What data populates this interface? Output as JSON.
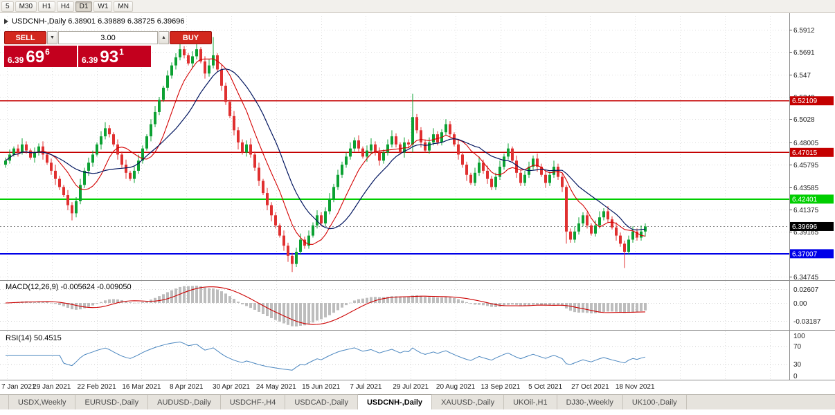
{
  "toolbar": {
    "timeframes": [
      {
        "label": "5",
        "active": false
      },
      {
        "label": "M30",
        "active": false
      },
      {
        "label": "H1",
        "active": false
      },
      {
        "label": "H4",
        "active": false
      },
      {
        "label": "D1",
        "active": true
      },
      {
        "label": "W1",
        "active": false
      },
      {
        "label": "MN",
        "active": false
      }
    ]
  },
  "trade_panel": {
    "sell_label": "SELL",
    "buy_label": "BUY",
    "volume": "3.00",
    "button_color": "#d3281e",
    "box_color": "#c3001e",
    "sell_price": {
      "prefix": "6.39",
      "big": "69",
      "sup": "6"
    },
    "buy_price": {
      "prefix": "6.39",
      "big": "93",
      "sup": "1"
    }
  },
  "chart_data": {
    "type": "candlestick",
    "symbol": "USDCNH-",
    "timeframe": "Daily",
    "header_text": "USDCNH-,Daily 6.38901 6.39889 6.38725 6.39696",
    "ohlc": {
      "open": "6.38901",
      "high": "6.39889",
      "low": "6.38725",
      "close": "6.39696"
    },
    "up_color": "#0ca133",
    "down_color": "#e03030",
    "ylim": [
      6.3447,
      6.6008
    ],
    "y_axis_labels": [
      "6.5912",
      "6.5691",
      "6.547",
      "6.5249",
      "6.5028",
      "6.48005",
      "6.45795",
      "6.43585",
      "6.41375",
      "6.39165",
      "6.34745"
    ],
    "y_axis_values": [
      6.5912,
      6.5691,
      6.547,
      6.5249,
      6.5028,
      6.48005,
      6.45795,
      6.43585,
      6.41375,
      6.39165,
      6.34745
    ],
    "x_labels": [
      "7 Jan 2021",
      "29 Jan 2021",
      "22 Feb 2021",
      "16 Mar 2021",
      "8 Apr 2021",
      "30 Apr 2021",
      "24 May 2021",
      "15 Jun 2021",
      "7 Jul 2021",
      "29 Jul 2021",
      "20 Aug 2021",
      "13 Sep 2021",
      "5 Oct 2021",
      "27 Oct 2021",
      "18 Nov 2021"
    ],
    "hlines": [
      {
        "value": 6.52109,
        "label": "6.52109",
        "color": "#c40000",
        "width": 1.2
      },
      {
        "value": 6.47015,
        "label": "6.47015",
        "color": "#c40000",
        "width": 1.4
      },
      {
        "value": 6.42401,
        "label": "6.42401",
        "color": "#00ce00",
        "width": 2
      },
      {
        "value": 6.37007,
        "label": "6.37007",
        "color": "#0000e8",
        "width": 2
      }
    ],
    "current_price": {
      "value": 6.39696,
      "label": "6.39696",
      "color": "#000000"
    },
    "ma_fast": {
      "period": 9,
      "color": "#d40000"
    },
    "ma_slow": {
      "period": 17,
      "color": "#00145e"
    },
    "macd": {
      "title": "MACD(12,26,9)",
      "values_text": "-0.005624 -0.009050",
      "fast": 12,
      "slow": 26,
      "signal": 9,
      "axis_labels": [
        "0.02607",
        "0.00",
        "-0.03187"
      ],
      "hist_color": "#bdbdbd",
      "signal_color": "#cc0000"
    },
    "rsi": {
      "title": "RSI(14)",
      "value_text": "50.4515",
      "period": 14,
      "levels": [
        70,
        30
      ],
      "axis_labels": [
        "100",
        "70",
        "30",
        "0"
      ],
      "color": "#4a86bf"
    },
    "candles": [
      [
        6.458,
        6.465,
        6.455,
        6.462
      ],
      [
        6.462,
        6.473,
        6.459,
        6.468
      ],
      [
        6.468,
        6.476,
        6.466,
        6.474
      ],
      [
        6.474,
        6.478,
        6.466,
        6.47
      ],
      [
        6.47,
        6.484,
        6.468,
        6.478
      ],
      [
        6.478,
        6.481,
        6.469,
        6.472
      ],
      [
        6.472,
        6.474,
        6.463,
        6.465
      ],
      [
        6.465,
        6.475,
        6.46,
        6.47
      ],
      [
        6.47,
        6.479,
        6.467,
        6.476
      ],
      [
        6.476,
        6.481,
        6.463,
        6.468
      ],
      [
        6.468,
        6.47,
        6.458,
        6.46
      ],
      [
        6.46,
        6.464,
        6.448,
        6.452
      ],
      [
        6.452,
        6.458,
        6.438,
        6.444
      ],
      [
        6.444,
        6.447,
        6.433,
        6.436
      ],
      [
        6.436,
        6.438,
        6.426,
        6.428
      ],
      [
        6.428,
        6.433,
        6.413,
        6.418
      ],
      [
        6.418,
        6.421,
        6.403,
        6.41
      ],
      [
        6.41,
        6.426,
        6.406,
        6.422
      ],
      [
        6.422,
        6.444,
        6.419,
        6.438
      ],
      [
        6.438,
        6.455,
        6.435,
        6.452
      ],
      [
        6.452,
        6.465,
        6.447,
        6.46
      ],
      [
        6.46,
        6.472,
        6.456,
        6.468
      ],
      [
        6.468,
        6.48,
        6.466,
        6.478
      ],
      [
        6.478,
        6.491,
        6.473,
        6.486
      ],
      [
        6.486,
        6.5,
        6.483,
        6.494
      ],
      [
        6.494,
        6.497,
        6.485,
        6.488
      ],
      [
        6.488,
        6.49,
        6.476,
        6.478
      ],
      [
        6.478,
        6.483,
        6.463,
        6.468
      ],
      [
        6.468,
        6.471,
        6.455,
        6.458
      ],
      [
        6.458,
        6.463,
        6.444,
        6.45
      ],
      [
        6.45,
        6.452,
        6.442,
        6.444
      ],
      [
        6.444,
        6.456,
        6.44,
        6.452
      ],
      [
        6.452,
        6.468,
        6.449,
        6.462
      ],
      [
        6.462,
        6.477,
        6.459,
        6.474
      ],
      [
        6.474,
        6.488,
        6.472,
        6.486
      ],
      [
        6.486,
        6.503,
        6.481,
        6.498
      ],
      [
        6.498,
        6.516,
        6.495,
        6.51
      ],
      [
        6.51,
        6.525,
        6.507,
        6.522
      ],
      [
        6.522,
        6.536,
        6.52,
        6.534
      ],
      [
        6.534,
        6.551,
        6.531,
        6.546
      ],
      [
        6.546,
        6.559,
        6.543,
        6.556
      ],
      [
        6.556,
        6.568,
        6.552,
        6.564
      ],
      [
        6.564,
        6.58,
        6.561,
        6.572
      ],
      [
        6.572,
        6.575,
        6.563,
        6.566
      ],
      [
        6.566,
        6.568,
        6.556,
        6.558
      ],
      [
        6.558,
        6.57,
        6.553,
        6.565
      ],
      [
        6.565,
        6.578,
        6.562,
        6.572
      ],
      [
        6.572,
        6.574,
        6.558,
        6.56
      ],
      [
        6.56,
        6.565,
        6.543,
        6.548
      ],
      [
        6.548,
        6.562,
        6.545,
        6.556
      ],
      [
        6.556,
        6.584,
        6.553,
        6.566
      ],
      [
        6.566,
        6.568,
        6.55,
        6.552
      ],
      [
        6.552,
        6.557,
        6.531,
        6.536
      ],
      [
        6.536,
        6.539,
        6.517,
        6.52
      ],
      [
        6.52,
        6.522,
        6.504,
        6.506
      ],
      [
        6.506,
        6.511,
        6.487,
        6.492
      ],
      [
        6.492,
        6.495,
        6.473,
        6.48
      ],
      [
        6.48,
        6.483,
        6.468,
        6.47
      ],
      [
        6.47,
        6.482,
        6.466,
        6.478
      ],
      [
        6.478,
        6.484,
        6.465,
        6.468
      ],
      [
        6.468,
        6.471,
        6.452,
        6.455
      ],
      [
        6.455,
        6.46,
        6.437,
        6.442
      ],
      [
        6.442,
        6.444,
        6.428,
        6.43
      ],
      [
        6.43,
        6.435,
        6.413,
        6.418
      ],
      [
        6.418,
        6.421,
        6.402,
        6.408
      ],
      [
        6.408,
        6.411,
        6.395,
        6.398
      ],
      [
        6.398,
        6.4,
        6.386,
        6.388
      ],
      [
        6.388,
        6.393,
        6.373,
        6.378
      ],
      [
        6.378,
        6.381,
        6.362,
        6.368
      ],
      [
        6.368,
        6.371,
        6.352,
        6.36
      ],
      [
        6.36,
        6.376,
        6.357,
        6.372
      ],
      [
        6.372,
        6.39,
        6.369,
        6.384
      ],
      [
        6.384,
        6.387,
        6.375,
        6.378
      ],
      [
        6.378,
        6.393,
        6.375,
        6.388
      ],
      [
        6.388,
        6.401,
        6.386,
        6.398
      ],
      [
        6.398,
        6.413,
        6.395,
        6.408
      ],
      [
        6.408,
        6.411,
        6.397,
        6.4
      ],
      [
        6.4,
        6.416,
        6.397,
        6.412
      ],
      [
        6.412,
        6.43,
        6.409,
        6.424
      ],
      [
        6.424,
        6.439,
        6.421,
        6.436
      ],
      [
        6.436,
        6.453,
        6.433,
        6.448
      ],
      [
        6.448,
        6.461,
        6.445,
        6.458
      ],
      [
        6.458,
        6.47,
        6.455,
        6.466
      ],
      [
        6.466,
        6.48,
        6.463,
        6.474
      ],
      [
        6.474,
        6.485,
        6.471,
        6.482
      ],
      [
        6.482,
        6.487,
        6.471,
        6.474
      ],
      [
        6.474,
        6.476,
        6.464,
        6.466
      ],
      [
        6.466,
        6.477,
        6.461,
        6.472
      ],
      [
        6.472,
        6.484,
        6.469,
        6.478
      ],
      [
        6.478,
        6.481,
        6.467,
        6.47
      ],
      [
        6.47,
        6.475,
        6.457,
        6.462
      ],
      [
        6.462,
        6.473,
        6.459,
        6.47
      ],
      [
        6.47,
        6.483,
        6.467,
        6.478
      ],
      [
        6.478,
        6.492,
        6.475,
        6.486
      ],
      [
        6.486,
        6.489,
        6.475,
        6.478
      ],
      [
        6.478,
        6.48,
        6.468,
        6.47
      ],
      [
        6.47,
        6.485,
        6.465,
        6.48
      ],
      [
        6.48,
        6.483,
        6.475,
        6.478
      ],
      [
        6.478,
        6.528,
        6.47,
        6.505
      ],
      [
        6.505,
        6.508,
        6.489,
        6.492
      ],
      [
        6.492,
        6.495,
        6.475,
        6.48
      ],
      [
        6.48,
        6.483,
        6.47,
        6.472
      ],
      [
        6.472,
        6.485,
        6.469,
        6.48
      ],
      [
        6.48,
        6.494,
        6.477,
        6.488
      ],
      [
        6.488,
        6.491,
        6.477,
        6.48
      ],
      [
        6.48,
        6.493,
        6.477,
        6.49
      ],
      [
        6.49,
        6.503,
        6.487,
        6.498
      ],
      [
        6.498,
        6.501,
        6.485,
        6.488
      ],
      [
        6.488,
        6.49,
        6.476,
        6.478
      ],
      [
        6.478,
        6.483,
        6.463,
        6.468
      ],
      [
        6.468,
        6.471,
        6.455,
        6.458
      ],
      [
        6.458,
        6.461,
        6.442,
        6.448
      ],
      [
        6.448,
        6.45,
        6.438,
        6.44
      ],
      [
        6.44,
        6.455,
        6.437,
        6.45
      ],
      [
        6.45,
        6.466,
        6.447,
        6.46
      ],
      [
        6.46,
        6.463,
        6.449,
        6.452
      ],
      [
        6.452,
        6.457,
        6.439,
        6.444
      ],
      [
        6.444,
        6.447,
        6.433,
        6.436
      ],
      [
        6.436,
        6.45,
        6.433,
        6.446
      ],
      [
        6.446,
        6.462,
        6.443,
        6.456
      ],
      [
        6.456,
        6.469,
        6.453,
        6.466
      ],
      [
        6.466,
        6.479,
        6.463,
        6.474
      ],
      [
        6.474,
        6.476,
        6.46,
        6.462
      ],
      [
        6.462,
        6.467,
        6.445,
        6.45
      ],
      [
        6.45,
        6.453,
        6.437,
        6.44
      ],
      [
        6.44,
        6.452,
        6.437,
        6.448
      ],
      [
        6.448,
        6.461,
        6.445,
        6.456
      ],
      [
        6.456,
        6.467,
        6.453,
        6.464
      ],
      [
        6.464,
        6.469,
        6.451,
        6.456
      ],
      [
        6.456,
        6.459,
        6.446,
        6.448
      ],
      [
        6.448,
        6.453,
        6.435,
        6.44
      ],
      [
        6.44,
        6.451,
        6.437,
        6.448
      ],
      [
        6.448,
        6.462,
        6.445,
        6.456
      ],
      [
        6.456,
        6.459,
        6.443,
        6.446
      ],
      [
        6.446,
        6.449,
        6.431,
        6.436
      ],
      [
        6.436,
        6.438,
        6.38,
        6.392
      ],
      [
        6.392,
        6.395,
        6.381,
        6.384
      ],
      [
        6.384,
        6.397,
        6.381,
        6.392
      ],
      [
        6.392,
        6.406,
        6.389,
        6.4
      ],
      [
        6.4,
        6.411,
        6.397,
        6.408
      ],
      [
        6.408,
        6.411,
        6.395,
        6.398
      ],
      [
        6.398,
        6.4,
        6.388,
        6.39
      ],
      [
        6.39,
        6.403,
        6.387,
        6.398
      ],
      [
        6.398,
        6.412,
        6.395,
        6.406
      ],
      [
        6.406,
        6.415,
        6.403,
        6.412
      ],
      [
        6.412,
        6.417,
        6.401,
        6.404
      ],
      [
        6.404,
        6.407,
        6.394,
        6.396
      ],
      [
        6.396,
        6.401,
        6.383,
        6.388
      ],
      [
        6.388,
        6.391,
        6.377,
        6.38
      ],
      [
        6.38,
        6.383,
        6.356,
        6.372
      ],
      [
        6.372,
        6.388,
        6.369,
        6.384
      ],
      [
        6.384,
        6.397,
        6.381,
        6.392
      ],
      [
        6.392,
        6.395,
        6.383,
        6.386
      ],
      [
        6.386,
        6.398,
        6.383,
        6.392
      ],
      [
        6.392,
        6.4,
        6.387,
        6.397
      ]
    ]
  },
  "tabs": [
    {
      "label": "USDX,Weekly",
      "active": false
    },
    {
      "label": "EURUSD-,Daily",
      "active": false
    },
    {
      "label": "AUDUSD-,Daily",
      "active": false
    },
    {
      "label": "USDCHF-,H4",
      "active": false
    },
    {
      "label": "USDCAD-,Daily",
      "active": false
    },
    {
      "label": "USDCNH-,Daily",
      "active": true
    },
    {
      "label": "XAUUSD-,Daily",
      "active": false
    },
    {
      "label": "UKOil-,H1",
      "active": false
    },
    {
      "label": "DJ30-,Weekly",
      "active": false
    },
    {
      "label": "UK100-,Daily",
      "active": false
    }
  ]
}
